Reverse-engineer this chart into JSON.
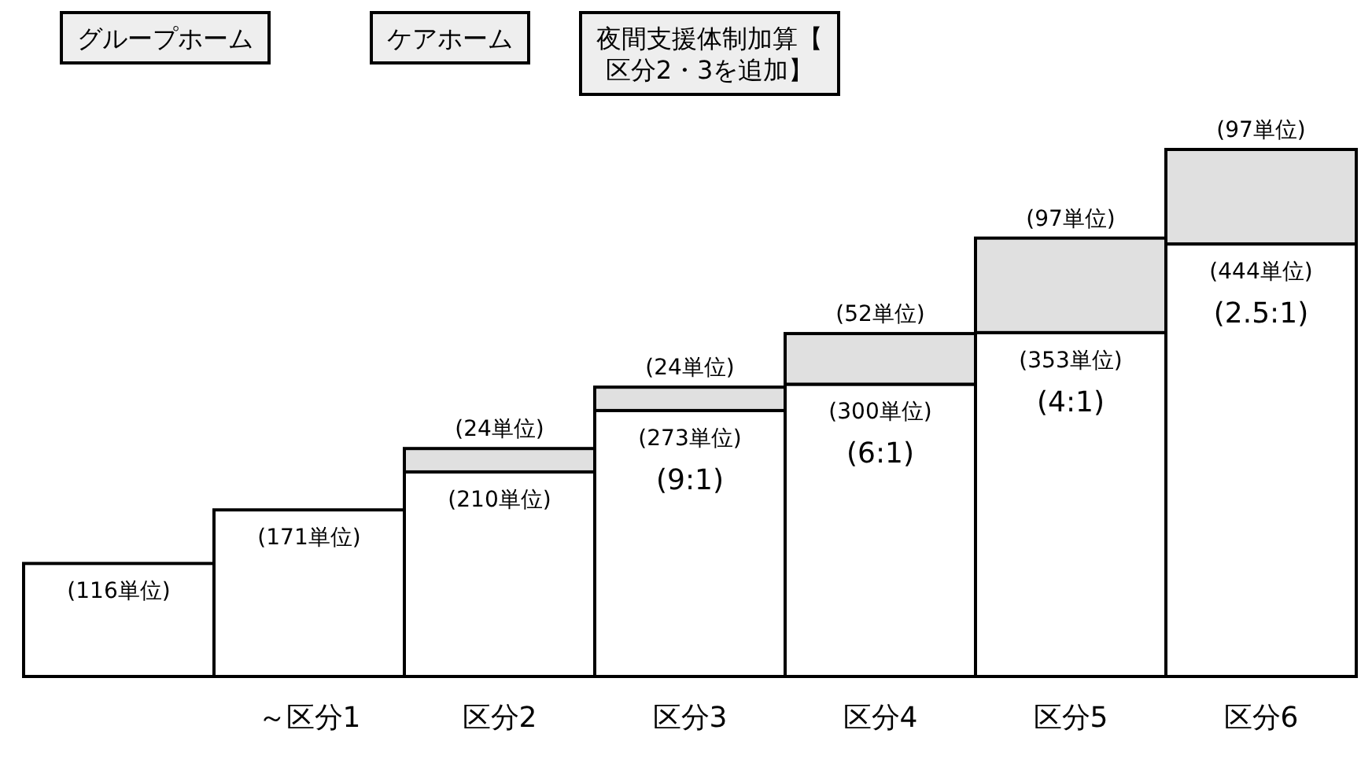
{
  "chart_data": {
    "type": "bar",
    "stacked": true,
    "categories": [
      null,
      "～区分1",
      "区分2",
      "区分3",
      "区分4",
      "区分5",
      "区分6"
    ],
    "series": [
      {
        "color": "#ffffff",
        "values": [
          116,
          171,
          210,
          273,
          300,
          353,
          444
        ],
        "value_labels": [
          "(116単位)",
          "(171単位)",
          "(210単位)",
          "(273単位)",
          "(300単位)",
          "(353単位)",
          "(444単位)"
        ]
      },
      {
        "color": "#e0e0e0",
        "values": [
          null,
          null,
          24,
          24,
          52,
          97,
          97
        ],
        "value_labels": [
          null,
          null,
          "(24単位)",
          "(24単位)",
          "(52単位)",
          "(97単位)",
          "(97単位)"
        ]
      }
    ],
    "annotations": [
      "グループホーム",
      "ケアホーム",
      "夜間支援体制加算【区分2・3を追加】",
      "(9:1)",
      "(6:1)",
      "(4:1)",
      "(2.5:1)"
    ]
  }
}
